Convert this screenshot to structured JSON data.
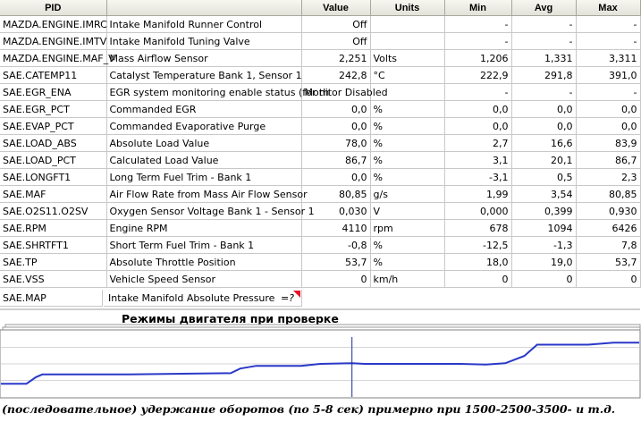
{
  "table": {
    "headers": [
      "PID",
      "",
      "Value",
      "Units",
      "Min",
      "Avg",
      "Max"
    ],
    "rows": [
      [
        "MAZDA.ENGINE.IMRC",
        "Intake Manifold Runner Control",
        "Off",
        "",
        "-",
        "-",
        "-"
      ],
      [
        "MAZDA.ENGINE.IMTV",
        "Intake Manifold Tuning Valve",
        "Off",
        "",
        "-",
        "-",
        "-"
      ],
      [
        "MAZDA.ENGINE.MAF_V",
        "Mass Airflow Sensor",
        "2,251",
        "Volts",
        "1,206",
        "1,331",
        "3,311"
      ],
      [
        "SAE.CATEMP11",
        "Catalyst Temperature Bank 1, Sensor 1",
        "242,8",
        "°C",
        "222,9",
        "291,8",
        "391,0"
      ],
      [
        "SAE.EGR_ENA",
        "EGR system monitoring enable status (for th",
        "Monitor Disabled",
        "",
        "-",
        "-",
        "-"
      ],
      [
        "SAE.EGR_PCT",
        "Commanded EGR",
        "0,0",
        "%",
        "0,0",
        "0,0",
        "0,0"
      ],
      [
        "SAE.EVAP_PCT",
        "Commanded Evaporative Purge",
        "0,0",
        "%",
        "0,0",
        "0,0",
        "0,0"
      ],
      [
        "SAE.LOAD_ABS",
        "Absolute Load Value",
        "78,0",
        "%",
        "2,7",
        "16,6",
        "83,9"
      ],
      [
        "SAE.LOAD_PCT",
        "Calculated Load Value",
        "86,7",
        "%",
        "3,1",
        "20,1",
        "86,7"
      ],
      [
        "SAE.LONGFT1",
        "Long Term Fuel Trim - Bank 1",
        "0,0",
        "%",
        "-3,1",
        "0,5",
        "2,3"
      ],
      [
        "SAE.MAF",
        "Air Flow Rate from Mass Air Flow Sensor",
        "80,85",
        "g/s",
        "1,99",
        "3,54",
        "80,85"
      ],
      [
        "SAE.O2S11.O2SV",
        "Oxygen Sensor Voltage Bank 1 - Sensor 1",
        "0,030",
        "V",
        "0,000",
        "0,399",
        "0,930"
      ],
      [
        "SAE.RPM",
        "Engine RPM",
        "4110",
        "rpm",
        "678",
        "1094",
        "6426"
      ],
      [
        "SAE.SHRTFT1",
        "Short Term Fuel Trim - Bank 1",
        "-0,8",
        "%",
        "-12,5",
        "-1,3",
        "7,8"
      ],
      [
        "SAE.TP",
        "Absolute Throttle Position",
        "53,7",
        "%",
        "18,0",
        "19,0",
        "53,7"
      ],
      [
        "SAE.VSS",
        "Vehicle Speed Sensor",
        "0",
        "km/h",
        "0",
        "0",
        "0"
      ]
    ]
  },
  "extra_row": {
    "pid": "SAE.MAP",
    "description": "Intake Manifold Absolute Pressure",
    "marker": "=?"
  },
  "chart_title": "Режимы двигателя при проверке",
  "caption": "(последовательное) удержание оборотов (по 5-8 сек) примерно при 1500-2500-3500- и т.д.",
  "chart_data": {
    "type": "line",
    "title": "Режимы двигателя при проверке",
    "xlabel": "",
    "ylabel": "",
    "grid": true,
    "line_color": "#2a38c8",
    "cursor_color": "#1a2a9a",
    "cursor_x": 0.55,
    "series": [
      {
        "x": [
          0,
          0.04,
          0.055,
          0.065,
          0.08,
          0.2,
          0.36,
          0.375,
          0.4,
          0.47,
          0.5,
          0.55,
          0.57,
          0.72,
          0.76,
          0.79,
          0.82,
          0.84,
          0.92,
          0.96,
          1.0
        ],
        "values": [
          0.2,
          0.2,
          0.3,
          0.34,
          0.34,
          0.34,
          0.36,
          0.43,
          0.47,
          0.47,
          0.5,
          0.51,
          0.5,
          0.5,
          0.49,
          0.51,
          0.62,
          0.79,
          0.79,
          0.82,
          0.82
        ]
      }
    ]
  }
}
